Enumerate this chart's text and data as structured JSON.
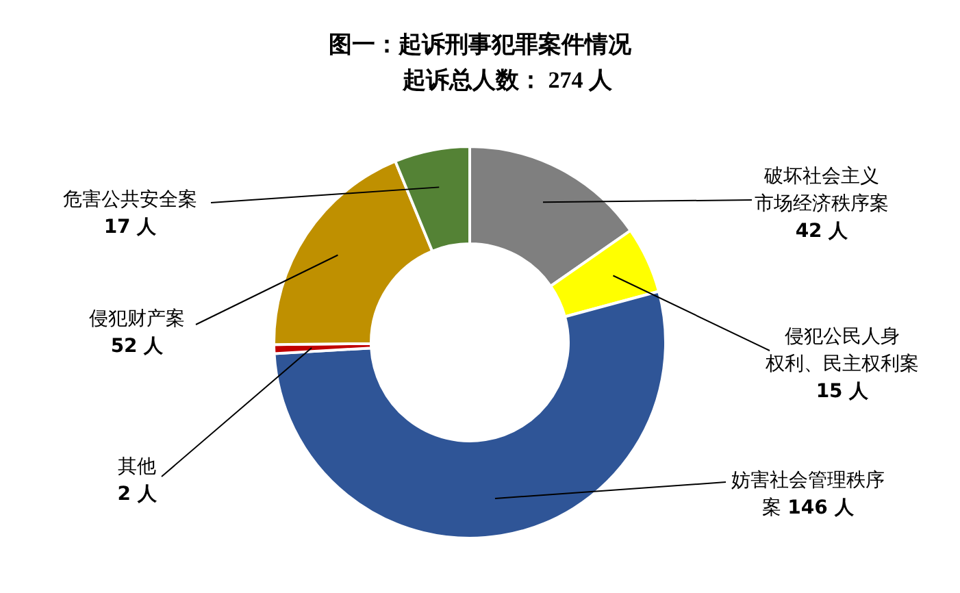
{
  "chart_data": {
    "type": "donut",
    "title": "图一：起诉刑事犯罪案件情况",
    "subtitle": "起诉总人数： 274 人",
    "categories": [
      "破坏社会主义市场经济秩序案",
      "侵犯公民人身权利、民主权利案",
      "妨害社会管理秩序案",
      "其他",
      "侵犯财产案",
      "危害公共安全案"
    ],
    "values": [
      42,
      15,
      146,
      2,
      52,
      17
    ],
    "value_labels": [
      "42 人",
      "15 人",
      "146 人",
      "2 人",
      "52 人",
      "17 人"
    ],
    "colors": [
      "#7f7f7f",
      "#ffff00",
      "#2f5597",
      "#c00000",
      "#bf9000",
      "#548235"
    ]
  }
}
